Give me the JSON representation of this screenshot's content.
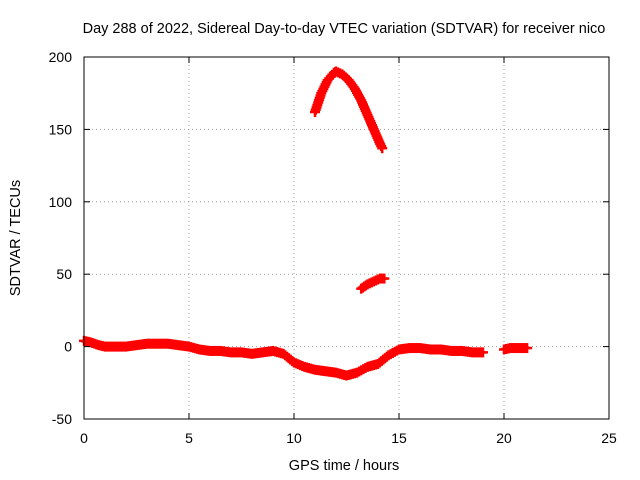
{
  "chart_data": {
    "type": "scatter",
    "title": "Day 288 of 2022, Sidereal Day-to-day VTEC variation (SDTVAR) for receiver nico",
    "xlabel": "GPS time / hours",
    "ylabel": "SDTVAR / TECUs",
    "xlim": [
      0,
      25
    ],
    "ylim": [
      -50,
      200
    ],
    "xticks": [
      0,
      5,
      10,
      15,
      20,
      25
    ],
    "yticks": [
      -50,
      0,
      50,
      100,
      150,
      200
    ],
    "grid": true,
    "marker_color": "#ff0000",
    "series": [
      {
        "name": "baseline",
        "x": [
          0.0,
          0.3,
          0.7,
          1.0,
          1.5,
          2.0,
          2.5,
          3.0,
          3.5,
          4.0,
          4.5,
          5.0,
          5.5,
          6.0,
          6.5,
          7.0,
          7.5,
          8.0,
          8.5,
          9.0,
          9.5,
          10.0,
          10.5,
          11.0,
          11.5,
          12.0,
          12.5,
          13.0,
          13.5,
          14.0,
          14.5,
          15.0,
          15.5,
          16.0,
          16.5,
          17.0,
          17.5,
          18.0,
          18.5,
          19.0
        ],
        "y": [
          4,
          3,
          1,
          0,
          0,
          0,
          1,
          2,
          2,
          2,
          1,
          0,
          -2,
          -3,
          -3,
          -4,
          -4,
          -5,
          -4,
          -3,
          -5,
          -11,
          -14,
          -16,
          -17,
          -18,
          -20,
          -18,
          -14,
          -12,
          -6,
          -2,
          -1,
          -1,
          -2,
          -2,
          -3,
          -3,
          -4,
          -4
        ]
      },
      {
        "name": "tail",
        "x": [
          20.0,
          20.3,
          20.6,
          20.9,
          21.1
        ],
        "y": [
          -2,
          -1,
          -1,
          -1,
          -1
        ]
      },
      {
        "name": "arc-high",
        "x": [
          11.0,
          11.3,
          11.6,
          11.9,
          12.0,
          12.3,
          12.6,
          12.9,
          13.2,
          13.5,
          13.8,
          14.1,
          14.2
        ],
        "y": [
          162,
          175,
          184,
          189,
          190,
          188,
          184,
          178,
          170,
          160,
          150,
          140,
          137
        ]
      },
      {
        "name": "arc-mid",
        "x": [
          13.2,
          13.5,
          13.8,
          14.1,
          14.3
        ],
        "y": [
          40,
          43,
          45,
          47,
          47
        ]
      }
    ]
  }
}
